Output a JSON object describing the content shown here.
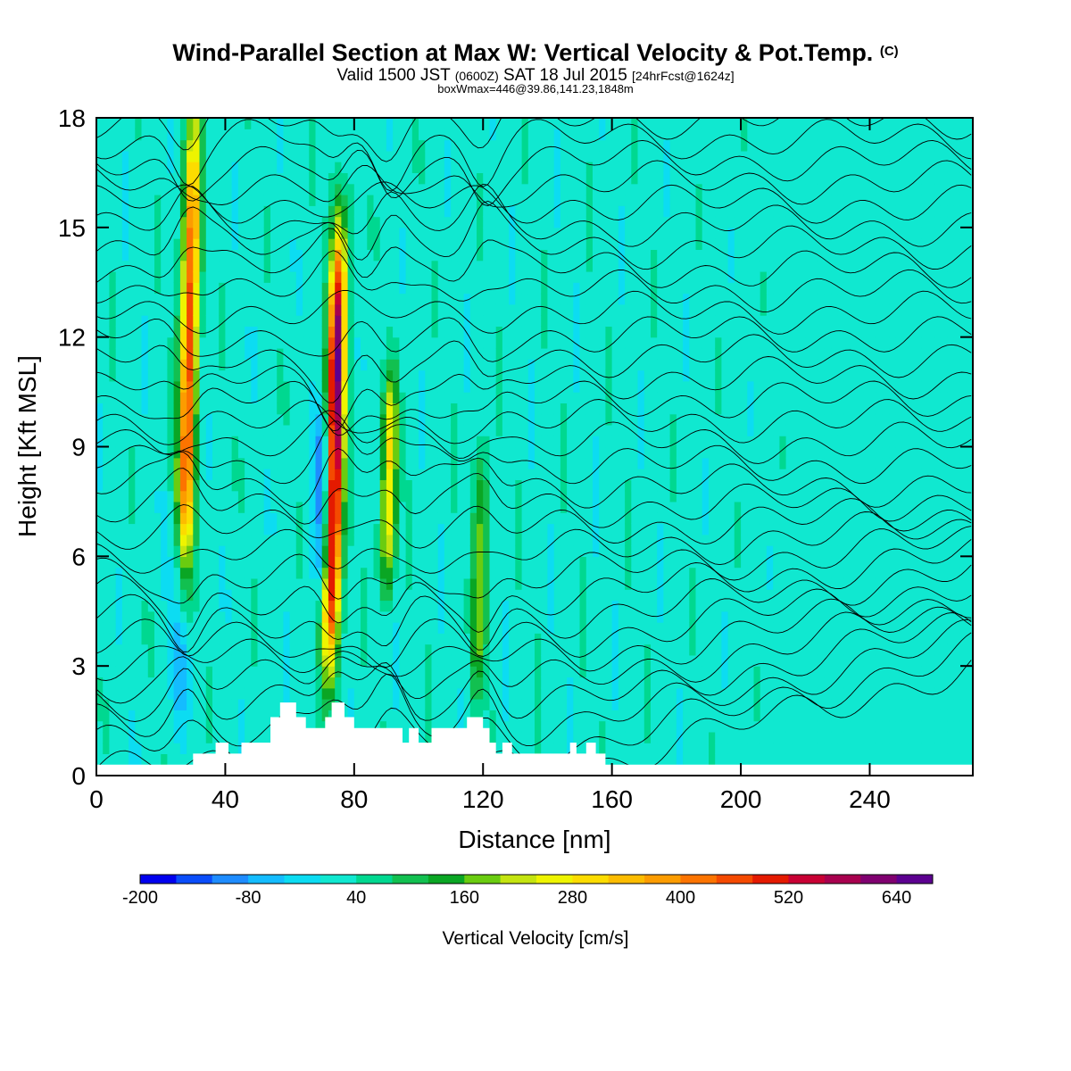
{
  "header": {
    "title": "Wind-Parallel Section at Max W: Vertical Velocity & Pot.Temp.",
    "copyright": "(C)",
    "valid_prefix": "Valid 1500 JST",
    "valid_utc": "(0600Z)",
    "valid_date": "SAT 18 Jul 2015",
    "forecast": "[24hrFcst@1624z]",
    "box_info": "boxWmax=446@39.86,141.23,1848m"
  },
  "colorbar": {
    "label": "Vertical Velocity [cm/s]",
    "colors": [
      "#0000ee",
      "#0a4dfa",
      "#1e8cff",
      "#14bcff",
      "#0cdcf2",
      "#10e8d0",
      "#00d890",
      "#12c050",
      "#0aa624",
      "#6acc10",
      "#c4e410",
      "#eef400",
      "#fcdc00",
      "#fcbc00",
      "#fc9c00",
      "#fc7400",
      "#f44a00",
      "#e41a00",
      "#c80034",
      "#a8004e",
      "#800070",
      "#5c0090"
    ],
    "tick_values": [
      "-200",
      "-80",
      "40",
      "160",
      "280",
      "400",
      "520",
      "640"
    ]
  },
  "chart_data": {
    "type": "heatmap",
    "xlabel": "Distance [nm]",
    "ylabel": "Height [Kft MSL]",
    "xlim": [
      0,
      272
    ],
    "ylim": [
      0,
      18
    ],
    "x_ticks": [
      "0",
      "40",
      "80",
      "120",
      "160",
      "200",
      "240"
    ],
    "y_ticks": [
      "0",
      "3",
      "6",
      "9",
      "12",
      "15",
      "18"
    ],
    "background_value_cm_s": 20,
    "updrafts": [
      {
        "x_nm": 28,
        "z_base_kft": 5,
        "z_top_kft": 18,
        "w_max_cm_s": 450
      },
      {
        "x_nm": 74,
        "z_base_kft": 3,
        "z_top_kft": 15,
        "w_max_cm_s": 650
      },
      {
        "x_nm": 91,
        "z_base_kft": 5,
        "z_top_kft": 11,
        "w_max_cm_s": 250
      },
      {
        "x_nm": 120,
        "z_base_kft": 2,
        "z_top_kft": 9,
        "w_max_cm_s": 150
      }
    ],
    "downdrafts": [
      {
        "x_nm": 26,
        "z_base_kft": 1.5,
        "z_top_kft": 7,
        "w_min_cm_s": -80
      },
      {
        "x_nm": 71,
        "z_base_kft": 5,
        "z_top_kft": 10,
        "w_min_cm_s": -150
      }
    ],
    "terrain": [
      [
        0,
        0.3
      ],
      [
        30,
        0.3
      ],
      [
        30,
        0.6
      ],
      [
        37,
        0.6
      ],
      [
        37,
        0.9
      ],
      [
        41,
        0.9
      ],
      [
        41,
        0.6
      ],
      [
        45,
        0.6
      ],
      [
        45,
        0.9
      ],
      [
        54,
        0.9
      ],
      [
        54,
        1.6
      ],
      [
        57,
        1.6
      ],
      [
        57,
        2.0
      ],
      [
        62,
        2.0
      ],
      [
        62,
        1.6
      ],
      [
        65,
        1.6
      ],
      [
        65,
        1.3
      ],
      [
        71,
        1.3
      ],
      [
        71,
        1.6
      ],
      [
        73,
        1.6
      ],
      [
        73,
        2.0
      ],
      [
        77,
        2.0
      ],
      [
        77,
        1.6
      ],
      [
        80,
        1.6
      ],
      [
        80,
        1.3
      ],
      [
        95,
        1.3
      ],
      [
        95,
        0.9
      ],
      [
        97,
        0.9
      ],
      [
        97,
        1.3
      ],
      [
        100,
        1.3
      ],
      [
        100,
        0.9
      ],
      [
        104,
        0.9
      ],
      [
        104,
        1.3
      ],
      [
        115,
        1.3
      ],
      [
        115,
        1.6
      ],
      [
        120,
        1.6
      ],
      [
        120,
        1.3
      ],
      [
        122,
        1.3
      ],
      [
        122,
        0.9
      ],
      [
        124,
        0.9
      ],
      [
        124,
        0.6
      ],
      [
        126,
        0.6
      ],
      [
        126,
        0.9
      ],
      [
        129,
        0.9
      ],
      [
        129,
        0.6
      ],
      [
        147,
        0.6
      ],
      [
        147,
        0.9
      ],
      [
        149,
        0.9
      ],
      [
        149,
        0.6
      ],
      [
        152,
        0.6
      ],
      [
        152,
        0.9
      ],
      [
        155,
        0.9
      ],
      [
        155,
        0.6
      ],
      [
        158,
        0.6
      ],
      [
        158,
        0.3
      ],
      [
        272,
        0.3
      ]
    ],
    "theta_contour_levels": 32,
    "grid": false
  }
}
